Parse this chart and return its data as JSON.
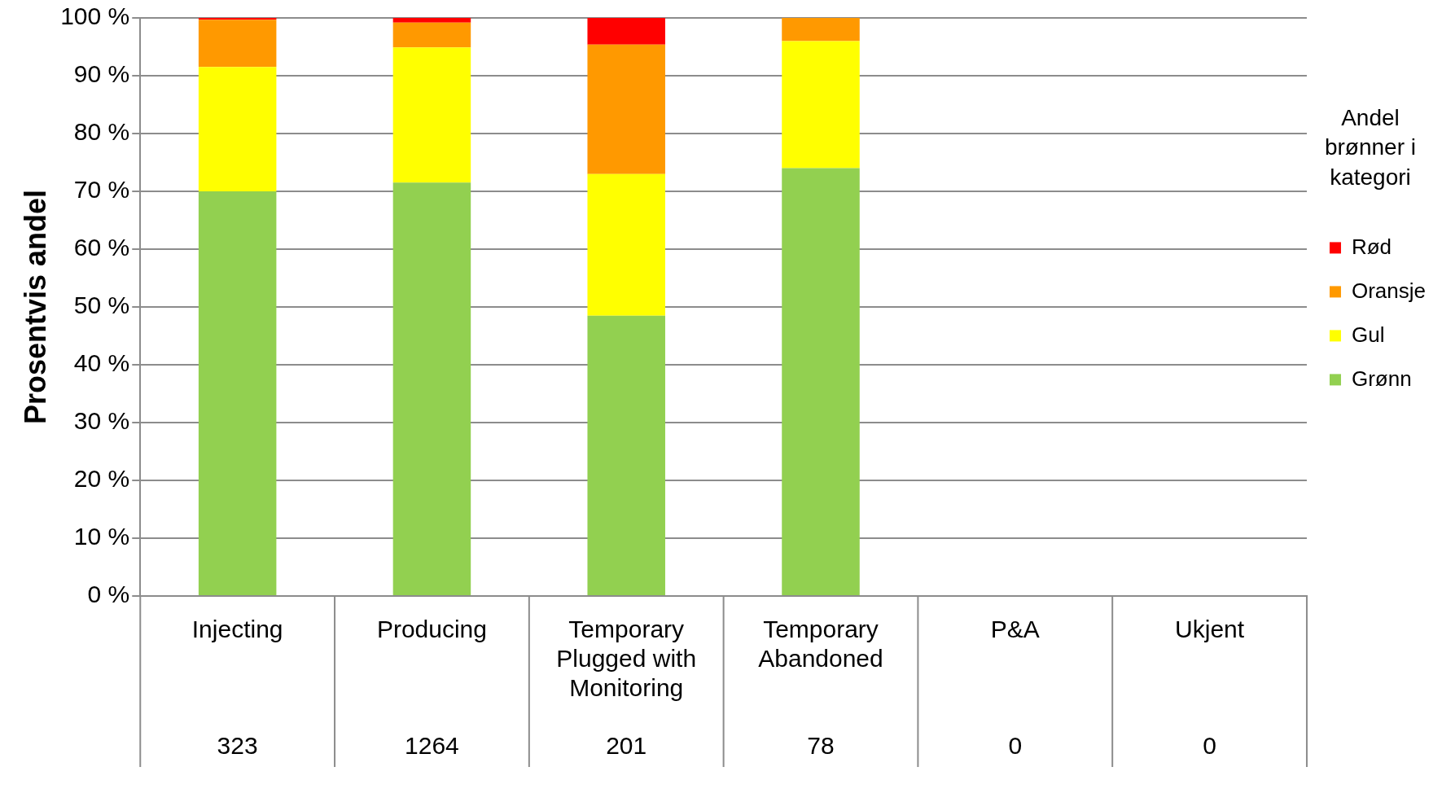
{
  "chart_data": {
    "type": "bar",
    "stacked": true,
    "ylabel": "Prosentvis andel",
    "legend_title": "Andel brønner i kategori",
    "legend": "right",
    "grid": "y",
    "categories": [
      "Injecting",
      "Producing",
      "Temporary Plugged with Monitoring",
      "Temporary Abandoned",
      "P&A",
      "Ukjent"
    ],
    "series": [
      {
        "name": "Grønn",
        "color": "#92d050",
        "values": [
          70,
          71.5,
          48.5,
          74,
          0,
          0
        ]
      },
      {
        "name": "Gul",
        "color": "#ffff00",
        "values": [
          21.5,
          23.4,
          24.5,
          22,
          0,
          0
        ]
      },
      {
        "name": "Oransje",
        "color": "#ff9900",
        "values": [
          8.2,
          4.3,
          22.4,
          4,
          0,
          0
        ]
      },
      {
        "name": "Rød",
        "color": "#ff0000",
        "values": [
          0.3,
          0.8,
          4.6,
          0,
          0,
          0
        ]
      }
    ],
    "ylim": [
      0,
      100
    ],
    "yticks": [
      {
        "value": 0,
        "label": "0 %"
      },
      {
        "value": 10,
        "label": "10 %"
      },
      {
        "value": 20,
        "label": "20 %"
      },
      {
        "value": 30,
        "label": "30 %"
      },
      {
        "value": 40,
        "label": "40 %"
      },
      {
        "value": 50,
        "label": "50 %"
      },
      {
        "value": 60,
        "label": "60 %"
      },
      {
        "value": 70,
        "label": "70 %"
      },
      {
        "value": 80,
        "label": "80 %"
      },
      {
        "value": 90,
        "label": "90 %"
      },
      {
        "value": 100,
        "label": "100 %"
      }
    ],
    "annotations": [
      "323",
      "1264",
      "201",
      "78",
      "0",
      "0"
    ]
  }
}
